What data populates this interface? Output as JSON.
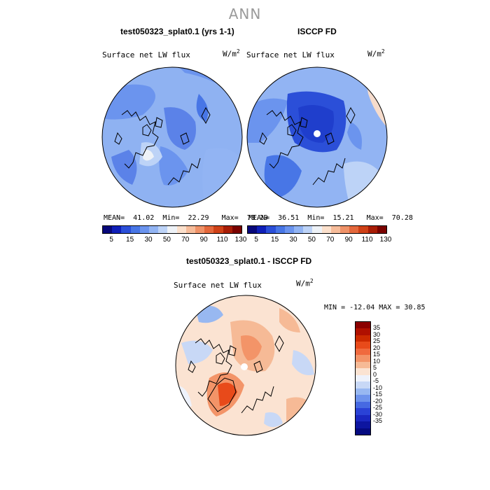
{
  "season": "ANN",
  "panel_top_left": {
    "title": "test050323_splat0.1 (yrs 1-1)",
    "variable": "Surface net LW flux",
    "units_base": "W/m",
    "units_exp": "2",
    "mean_label": "MEAN=",
    "mean": "41.02",
    "min_label": "Min=",
    "min": "22.29",
    "max_label": "Max=",
    "max": "78.29"
  },
  "panel_top_right": {
    "title": "ISCCP FD",
    "variable": "Surface net LW flux",
    "units_base": "W/m",
    "units_exp": "2",
    "mean_label": "MEAN=",
    "mean": "36.51",
    "min_label": "Min=",
    "min": "15.21",
    "max_label": "Max=",
    "max": "70.28"
  },
  "panel_diff": {
    "title": "test050323_splat0.1 - ISCCP FD",
    "variable": "Surface net LW flux",
    "units_base": "W/m",
    "units_exp": "2",
    "minmax": "MIN = -12.04 MAX =  30.85"
  },
  "top_colorbar": {
    "colors": [
      "#08087a",
      "#0f1fb8",
      "#2b4fd8",
      "#4876e6",
      "#6b94ee",
      "#92b4f3",
      "#bdd3f7",
      "#eef2f7",
      "#fbe0cc",
      "#f6bc9a",
      "#ef9268",
      "#e4683c",
      "#cf4117",
      "#a81d06",
      "#7a0200"
    ],
    "tick_labels": [
      "5",
      "15",
      "30",
      "50",
      "70",
      "90",
      "110",
      "130"
    ]
  },
  "diff_colorbar": {
    "colors": [
      "#8b0000",
      "#b01000",
      "#cc2a00",
      "#e84a1a",
      "#f06a3e",
      "#f39468",
      "#f6ba96",
      "#fbe3d2",
      "#eef2fb",
      "#c8d8f6",
      "#98b8f1",
      "#6e93ec",
      "#4669e2",
      "#2a42d6",
      "#1a27c0",
      "#0d15a0",
      "#050a80"
    ],
    "tick_labels": [
      "35",
      "30",
      "25",
      "20",
      "15",
      "10",
      "5",
      "0",
      "-5",
      "-10",
      "-15",
      "-20",
      "-25",
      "-30",
      "-35"
    ]
  }
}
